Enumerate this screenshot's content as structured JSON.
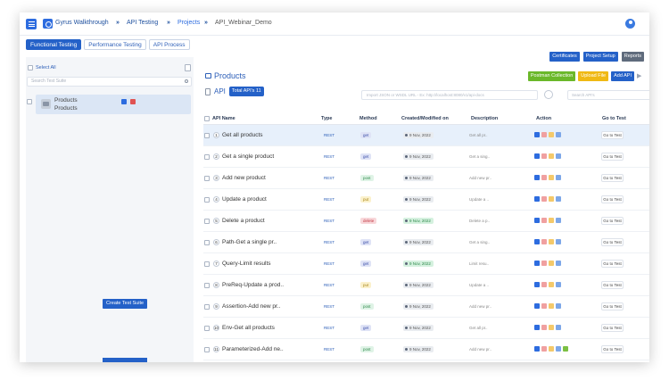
{
  "breadcrumb": {
    "workspace": "Gyrus Walkthrough",
    "sep": "»",
    "section": "API Testing",
    "projects": "Projects",
    "current": "API_Webinar_Demo"
  },
  "tabs": [
    "Functional Testing",
    "Performance Testing",
    "API Process"
  ],
  "sidebar": {
    "select_all": "Select All",
    "search_placeholder": "Search Test Suite",
    "suite_title": "Products",
    "suite_subtitle": "Products",
    "create_button": "Create Test Suite"
  },
  "header_buttons": {
    "certificates": "Certificates",
    "project_setup": "Project Setup",
    "reports": "Reports",
    "postman": "Postman Collection",
    "upload": "Upload File",
    "add_api": "Add API"
  },
  "main": {
    "folder_title": "Products",
    "api_label": "API",
    "total_badge": "Total API's 11",
    "import_placeholder": "Import JSON or WSDL URL - Ex: http://localhost:8080/v1/api-docs",
    "search_placeholder": "Search API's"
  },
  "table": {
    "headers": {
      "name": "API Name",
      "type": "Type",
      "method": "Method",
      "created": "Created/Modified on",
      "description": "Description",
      "action": "Action",
      "goto": "Go to Test"
    },
    "rows": [
      {
        "num": "1",
        "name": "Get all products",
        "type": "REST",
        "method": "get",
        "date": "9 Nov, 2022",
        "desc": "Get all pr..",
        "goto": "Go to Test"
      },
      {
        "num": "2",
        "name": "Get a single product",
        "type": "REST",
        "method": "get",
        "date": "9 Nov, 2022",
        "desc": "Get a sing..",
        "goto": "Go to Test"
      },
      {
        "num": "3",
        "name": "Add new product",
        "type": "REST",
        "method": "post",
        "date": "9 Nov, 2022",
        "desc": "Add new pr..",
        "goto": "Go to Test"
      },
      {
        "num": "4",
        "name": "Update a product",
        "type": "REST",
        "method": "put",
        "date": "9 Nov, 2022",
        "desc": "Update a ..",
        "goto": "Go to Test"
      },
      {
        "num": "5",
        "name": "Delete a product",
        "type": "REST",
        "method": "delete",
        "date": "9 Nov, 2022",
        "desc": "Delete a p..",
        "goto": "Go to Test"
      },
      {
        "num": "6",
        "name": "Path-Get a single pr..",
        "type": "REST",
        "method": "get",
        "date": "9 Nov, 2022",
        "desc": "Get a sing..",
        "goto": "Go to Test"
      },
      {
        "num": "7",
        "name": "Query-Limit results",
        "type": "REST",
        "method": "get",
        "date": "9 Nov, 2022",
        "desc": "Limit resu..",
        "goto": "Go to Test"
      },
      {
        "num": "8",
        "name": "PreReq-Update a prod..",
        "type": "REST",
        "method": "put",
        "date": "9 Nov, 2022",
        "desc": "Update a ..",
        "goto": "Go to Test"
      },
      {
        "num": "9",
        "name": "Assertion-Add new pr..",
        "type": "REST",
        "method": "post",
        "date": "9 Nov, 2022",
        "desc": "Add new pr..",
        "goto": "Go to Test"
      },
      {
        "num": "10",
        "name": "Env-Get all products",
        "type": "REST",
        "method": "get",
        "date": "9 Nov, 2022",
        "desc": "Get all pr..",
        "goto": "Go to Test"
      },
      {
        "num": "11",
        "name": "Parameterized-Add ne..",
        "type": "REST",
        "method": "post",
        "date": "9 Nov, 2022",
        "desc": "Add new pr..",
        "goto": "Go to Test"
      }
    ]
  },
  "colors": {
    "primary": "#2461c8",
    "green_button": "#6bb82a",
    "yellow_button": "#f0b915",
    "highlight_row": "#e7f0fb"
  }
}
